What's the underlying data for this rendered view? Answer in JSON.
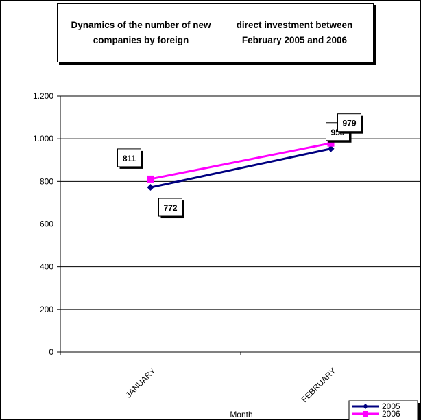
{
  "chart_data": {
    "type": "line",
    "title": "Dynamics of the number of new companies by foreign direct investment between February  2005 and  2006",
    "title_lines": [
      "Dynamics of the number of new companies by foreign",
      "direct investment between February  2005 and  2006"
    ],
    "xlabel": "Month",
    "ylabel": "",
    "categories": [
      "JANUARY",
      "FEBRUARY"
    ],
    "ylim": [
      0,
      1200
    ],
    "yticks": [
      0,
      200,
      400,
      600,
      800,
      1000,
      1200
    ],
    "ytick_labels": [
      "0",
      "200",
      "400",
      "600",
      "800",
      "1.000",
      "1.200"
    ],
    "grid": true,
    "legend_position": "bottom-right",
    "series": [
      {
        "name": "2005",
        "values": [
          772,
          953
        ],
        "labels": [
          "772",
          "953"
        ],
        "color": "#000080",
        "marker": "diamond"
      },
      {
        "name": "2006",
        "values": [
          811,
          979
        ],
        "labels": [
          "811",
          "979"
        ],
        "color": "#ff00ff",
        "marker": "square"
      }
    ]
  }
}
